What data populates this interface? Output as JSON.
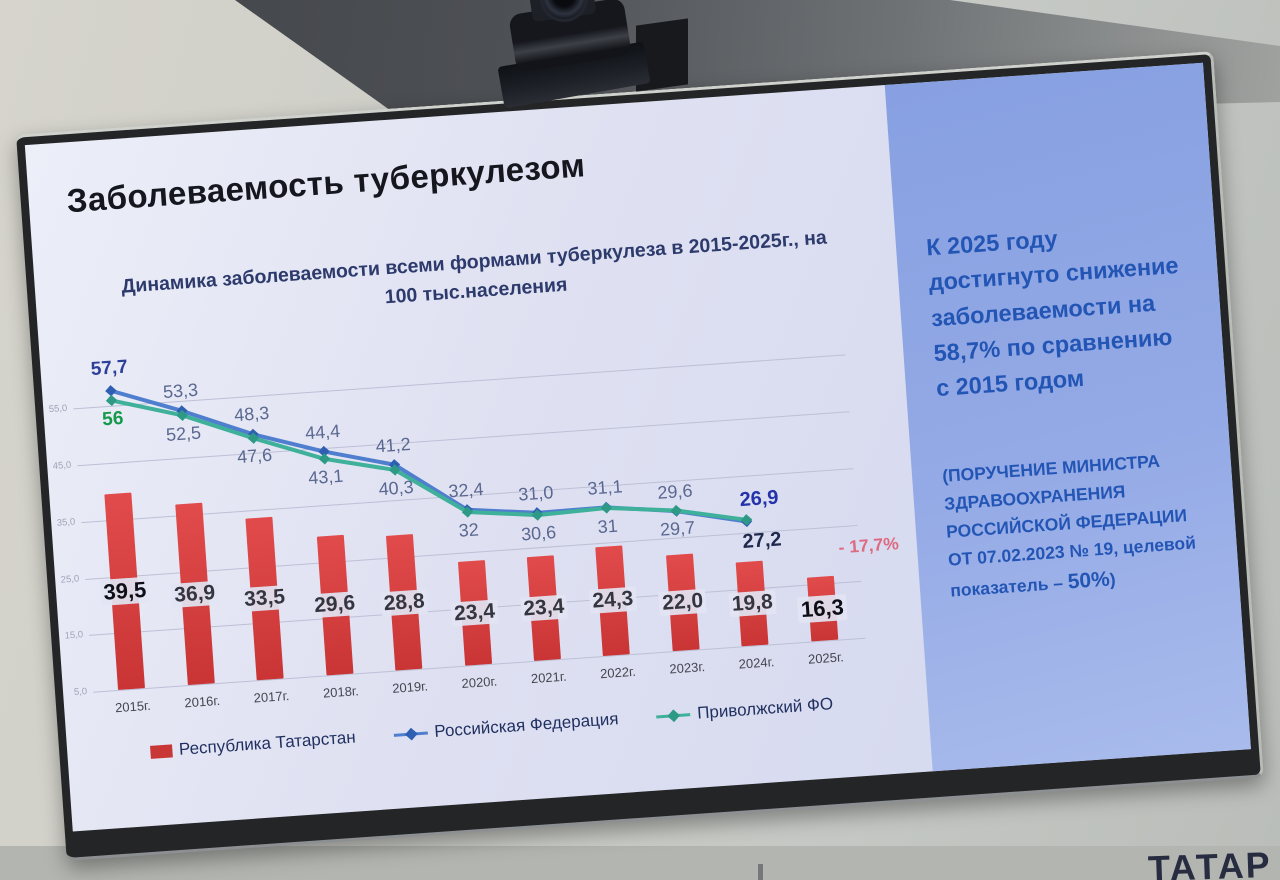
{
  "scene": {
    "partial_text": "ТАТАР"
  },
  "slide": {
    "title": "Заболеваемость туберкулезом",
    "sidebar": {
      "headline_line1": "К 2025 году",
      "headline_line2": "достигнуто снижение заболеваемости на",
      "headline_bold": "58,7%",
      "headline_tail": " по сравнению с 2015 годом",
      "note_text": "(ПОРУЧЕНИЕ МИНИСТРА ЗДРАВООХРАНЕНИЯ РОССИЙСКОЙ ФЕДЕРАЦИИ ОТ 07.02.2023 № 19, целевой показатель – ",
      "note_bold": "50%",
      "note_tail": ")"
    }
  },
  "chart_data": {
    "type": "combo",
    "title": "Динамика заболеваемости всеми формами туберкулеза в 2015-2025г., на 100 тыс.населения",
    "categories": [
      "2015г.",
      "2016г.",
      "2017г.",
      "2018г.",
      "2019г.",
      "2020г.",
      "2021г.",
      "2022г.",
      "2023г.",
      "2024г.",
      "2025г."
    ],
    "series": [
      {
        "name": "Республика Татарстан",
        "type": "bar",
        "color": "#cf3a3a",
        "values": [
          39.5,
          36.9,
          33.5,
          29.6,
          28.8,
          23.4,
          23.4,
          24.3,
          22.0,
          19.8,
          16.3
        ],
        "labels": [
          "39,5",
          "36,9",
          "33,5",
          "29,6",
          "28,8",
          "23,4",
          "23,4",
          "24,3",
          "22,0",
          "19,8",
          "16,3"
        ]
      },
      {
        "name": "Российская Федерация",
        "type": "line",
        "color": "#4f7ecf",
        "marker_color": "#2f5fb3",
        "values": [
          57.7,
          53.3,
          48.3,
          44.4,
          41.2,
          32.4,
          31.0,
          31.1,
          29.6,
          26.9
        ],
        "labels": [
          "57,7",
          "53,3",
          "48,3",
          "44,4",
          "41,2",
          "32,4",
          "31,0",
          "31,1",
          "29,6",
          "26,9"
        ],
        "label_side": "above",
        "label_colors": {
          "first": "#2c3f99",
          "mid": "#5a6890",
          "last": "#2433ac"
        }
      },
      {
        "name": "Приволжский ФО",
        "type": "line",
        "color": "#3fb09a",
        "marker_color": "#2e9a86",
        "values": [
          56,
          52.5,
          47.6,
          43.1,
          40.3,
          32,
          30.6,
          31,
          29.7,
          27.2
        ],
        "labels": [
          "56",
          "52,5",
          "47,6",
          "43,1",
          "40,3",
          "32",
          "30,6",
          "31",
          "29,7",
          "27,2"
        ],
        "label_side": "below",
        "label_colors": {
          "first": "#159a4c",
          "mid": "#5a6890",
          "last": "#20294e"
        }
      }
    ],
    "y_ticks": [
      "55,0",
      "45,0",
      "35,0",
      "25,0",
      "15,0",
      "5,0"
    ],
    "y_axis": {
      "min": 5,
      "max": 60,
      "gridline_step": 10
    },
    "annotation": "- 17,7%",
    "grid": true,
    "legend_position": "bottom"
  }
}
